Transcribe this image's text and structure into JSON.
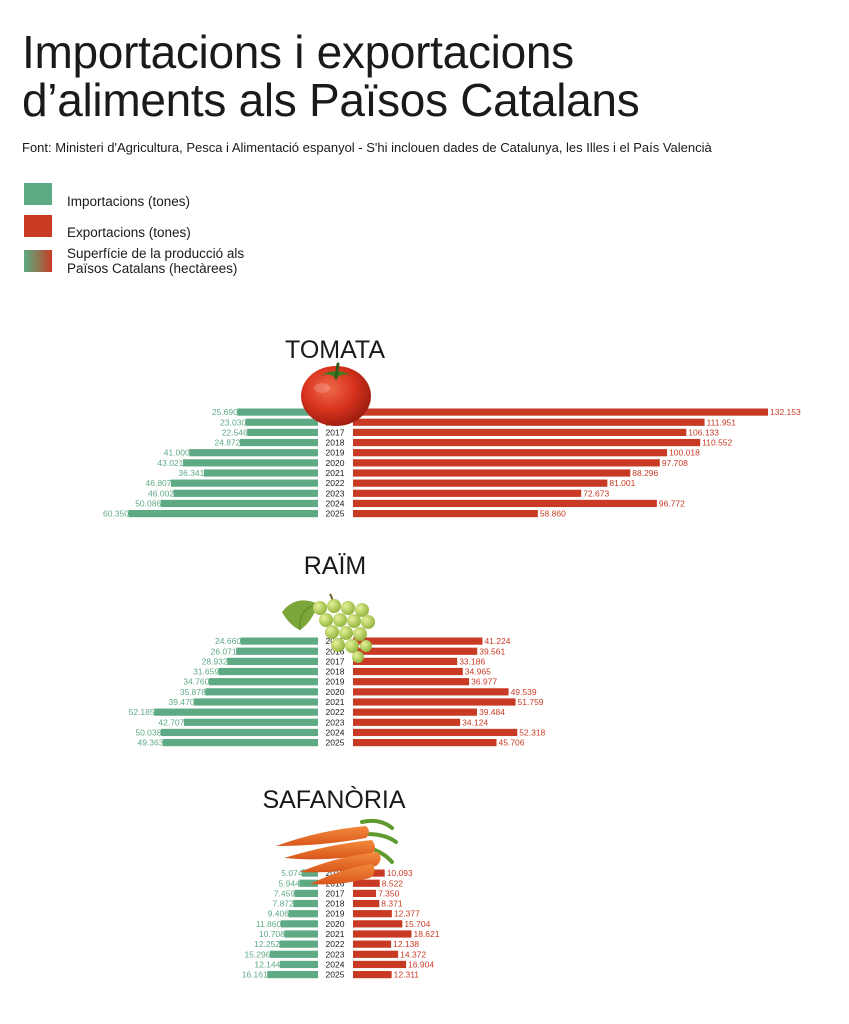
{
  "header": {
    "title_line1": "Importacions i exportacions",
    "title_line2": "d’aliments als Països Catalans",
    "source": "Font: Ministeri d'Agricultura, Pesca i Alimentació espanyol - S'hi inclouen dades de Catalunya, les Illes i el País Valencià"
  },
  "legend": {
    "imports": "Importacions (tones)",
    "exports": "Exportacions (tones)",
    "area": "Superfície de la producció als Països Catalans (hectàrees)"
  },
  "colors": {
    "imports": "#5eaa84",
    "exports": "#c83a24"
  },
  "chart_data": [
    {
      "type": "bar",
      "title": "TOMATA",
      "icon": "tomato-icon",
      "categories": [
        "2015",
        "2016",
        "2017",
        "2018",
        "2019",
        "2020",
        "2021",
        "2022",
        "2023",
        "2024",
        "2025"
      ],
      "series": [
        {
          "name": "Importacions (tones)",
          "values": [
            25690,
            23030,
            22546,
            24872,
            41000,
            43021,
            36341,
            46807,
            46002,
            50086,
            60350
          ]
        },
        {
          "name": "Exportacions (tones)",
          "values": [
            132153,
            111951,
            106133,
            110552,
            100018,
            97708,
            88296,
            81001,
            72673,
            96772,
            58860
          ]
        }
      ]
    },
    {
      "type": "bar",
      "title": "RAÏM",
      "icon": "grapes-icon",
      "categories": [
        "2015",
        "2016",
        "2017",
        "2018",
        "2019",
        "2020",
        "2021",
        "2022",
        "2023",
        "2024",
        "2025"
      ],
      "series": [
        {
          "name": "Importacions (tones)",
          "values": [
            24660,
            26071,
            28932,
            31659,
            34760,
            35878,
            39470,
            52185,
            42707,
            50038,
            49363
          ]
        },
        {
          "name": "Exportacions (tones)",
          "values": [
            41224,
            39561,
            33186,
            34965,
            36977,
            49539,
            51759,
            39484,
            34124,
            52318,
            45706
          ]
        }
      ]
    },
    {
      "type": "bar",
      "title": "SAFANÒRIA",
      "icon": "carrot-icon",
      "categories": [
        "2015",
        "2016",
        "2017",
        "2018",
        "2019",
        "2020",
        "2021",
        "2022",
        "2023",
        "2024",
        "2025"
      ],
      "series": [
        {
          "name": "Importacions (tones)",
          "values": [
            5074,
            5944,
            7459,
            7872,
            9406,
            11860,
            10708,
            12252,
            15296,
            12144,
            16161
          ]
        },
        {
          "name": "Exportacions (tones)",
          "values": [
            10093,
            8522,
            7350,
            8371,
            12377,
            15704,
            18621,
            12138,
            14372,
            16904,
            12311
          ]
        }
      ]
    }
  ]
}
